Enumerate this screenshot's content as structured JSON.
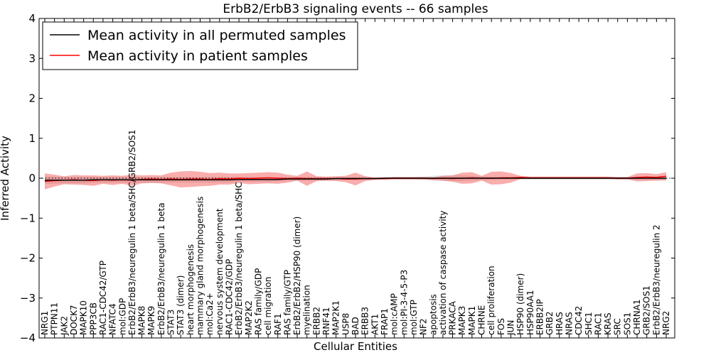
{
  "chart_data": {
    "type": "line",
    "title": "ErbB2/ErbB3 signaling events -- 66 samples",
    "xlabel": "Cellular Entities",
    "ylabel": "Inferred Activity",
    "ylim": [
      -4,
      4
    ],
    "yticks": [
      -4,
      -3,
      -2,
      -1,
      0,
      1,
      2,
      3,
      4
    ],
    "ytick_labels": [
      "−4",
      "−3",
      "−2",
      "−1",
      "0",
      "1",
      "2",
      "3",
      "4"
    ],
    "reference_line": 0.0,
    "legend": {
      "position": "top-left",
      "entries": [
        {
          "label": "Mean activity in all permuted samples",
          "color": "#000000"
        },
        {
          "label": "Mean activity in patient samples",
          "color": "#ff0000"
        }
      ]
    },
    "categories": [
      "NRG1",
      "PTPN11",
      "JAK2",
      "DOCK7",
      "MAPK10",
      "PPP3CB",
      "RAC1-CDC42/GTP",
      "NFATC4",
      "mol:GDP",
      "ErbB2/ErbB3/neuregulin 1 beta/SHC/GRB2/SOS1",
      "MAPK8",
      "MAPK9",
      "ErbB2/ErbB3/neuregulin 1 beta",
      "STAT3",
      "STAT3 (dimer)",
      "heart morphogenesis",
      "mammary gland morphogenesis",
      "mol:Ca2+",
      "nervous system development",
      "RAC1-CDC42/GDP",
      "ErbB2/ErbB3/neuregulin 1 beta/SHC",
      "MAP2K2",
      "RAS family/GDP",
      "cell migration",
      "RAF1",
      "RAS family/GTP",
      "ErbB2/ErbB2/HSP90 (dimer)",
      "myelination",
      "ERBB2",
      "RNF41",
      "MAP2K1",
      "USP8",
      "BAD",
      "ERBB3",
      "AKT1",
      "FRAP1",
      "mol:cAMP",
      "mol:PI-3-4-5-P3",
      "mol:GTP",
      "NF2",
      "apoptosis",
      "activation of caspase activity",
      "PRKACA",
      "MAPK3",
      "MAPK1",
      "CHRNE",
      "cell proliferation",
      "FOS",
      "JUN",
      "HSP90 (dimer)",
      "HSP90AA1",
      "ERBB2IP",
      "GRB2",
      "HRAS",
      "NRAS",
      "CDC42",
      "SHC1",
      "RAC1",
      "KRAS",
      "SRC",
      "SOS1",
      "CHRNA1",
      "GRB2/SOS1",
      "ErbB2/ErbB3/neuregulin 2",
      "NRG2"
    ],
    "series": [
      {
        "name": "Mean activity in all permuted samples",
        "color": "#000000",
        "values": [
          -0.05,
          -0.05,
          -0.05,
          -0.05,
          -0.05,
          -0.04,
          -0.04,
          -0.04,
          -0.04,
          -0.04,
          -0.04,
          -0.04,
          -0.04,
          -0.04,
          -0.04,
          -0.04,
          -0.04,
          -0.04,
          -0.04,
          -0.04,
          -0.03,
          -0.03,
          -0.03,
          -0.03,
          -0.03,
          -0.02,
          -0.02,
          -0.02,
          -0.02,
          -0.02,
          -0.01,
          -0.01,
          -0.01,
          -0.01,
          -0.01,
          0.0,
          0.0,
          0.0,
          0.0,
          0.0,
          0.0,
          0.0,
          0.0,
          0.0,
          0.0,
          0.0,
          0.0,
          0.0,
          0.0,
          0.0,
          0.0,
          0.0,
          0.0,
          0.0,
          0.0,
          0.0,
          0.0,
          0.0,
          0.0,
          0.0,
          0.0,
          0.0,
          0.0,
          0.0,
          0.0
        ],
        "band": [
          0.09,
          0.09,
          0.08,
          0.08,
          0.08,
          0.07,
          0.07,
          0.07,
          0.07,
          0.07,
          0.07,
          0.07,
          0.07,
          0.07,
          0.07,
          0.07,
          0.07,
          0.07,
          0.07,
          0.07,
          0.06,
          0.06,
          0.06,
          0.06,
          0.05,
          0.05,
          0.05,
          0.05,
          0.05,
          0.05,
          0.04,
          0.04,
          0.04,
          0.04,
          0.03,
          0.03,
          0.03,
          0.03,
          0.03,
          0.04,
          0.06,
          0.07,
          0.07,
          0.07,
          0.06,
          0.05,
          0.04,
          0.03,
          0.03,
          0.03,
          0.03,
          0.03,
          0.03,
          0.03,
          0.03,
          0.03,
          0.03,
          0.03,
          0.03,
          0.03,
          0.03,
          0.04,
          0.04,
          0.05,
          0.06
        ]
      },
      {
        "name": "Mean activity in patient samples",
        "color": "#ff0000",
        "values": [
          -0.08,
          -0.06,
          -0.05,
          -0.04,
          -0.05,
          -0.06,
          -0.04,
          -0.05,
          -0.04,
          -0.05,
          -0.03,
          -0.02,
          -0.03,
          -0.02,
          -0.03,
          -0.02,
          -0.02,
          -0.03,
          -0.01,
          -0.02,
          0.0,
          -0.01,
          0.0,
          0.01,
          0.0,
          -0.01,
          0.0,
          -0.01,
          -0.01,
          -0.01,
          -0.01,
          -0.02,
          -0.02,
          -0.01,
          -0.01,
          -0.01,
          0.0,
          0.0,
          0.0,
          0.0,
          -0.01,
          0.0,
          -0.01,
          0.0,
          0.01,
          0.0,
          0.0,
          0.01,
          0.01,
          0.02,
          0.01,
          0.01,
          0.01,
          0.01,
          0.01,
          0.01,
          0.01,
          0.01,
          0.01,
          0.0,
          0.0,
          0.02,
          0.03,
          0.02,
          0.05
        ],
        "band": [
          0.2,
          0.15,
          0.1,
          0.12,
          0.12,
          0.13,
          0.1,
          0.12,
          0.1,
          0.14,
          0.1,
          0.1,
          0.1,
          0.16,
          0.2,
          0.2,
          0.18,
          0.16,
          0.15,
          0.14,
          0.12,
          0.14,
          0.14,
          0.14,
          0.14,
          0.1,
          0.06,
          0.18,
          0.06,
          0.05,
          0.06,
          0.08,
          0.16,
          0.06,
          0.03,
          0.03,
          0.03,
          0.03,
          0.03,
          0.03,
          0.03,
          0.06,
          0.08,
          0.14,
          0.14,
          0.06,
          0.16,
          0.16,
          0.12,
          0.04,
          0.03,
          0.03,
          0.03,
          0.03,
          0.03,
          0.03,
          0.03,
          0.03,
          0.03,
          0.03,
          0.03,
          0.1,
          0.1,
          0.08,
          0.1
        ]
      }
    ]
  }
}
